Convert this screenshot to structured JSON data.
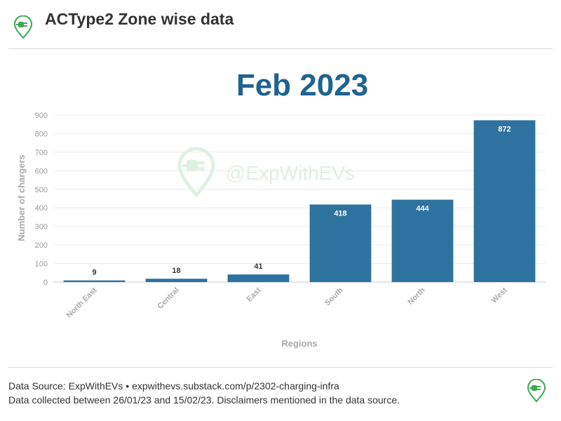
{
  "header": {
    "title": "ACType2 Zone wise data",
    "logo_icon": "ev-plug-pin-icon"
  },
  "watermark": {
    "text": "@ExpWithEVs",
    "icon": "ev-plug-pin-icon"
  },
  "chart_data": {
    "type": "bar",
    "title": "Feb 2023",
    "xlabel": "Regions",
    "ylabel": "Number of chargers",
    "categories": [
      "North East",
      "Central",
      "East",
      "South",
      "North",
      "West"
    ],
    "values": [
      9,
      18,
      41,
      418,
      444,
      872
    ],
    "data_labels": [
      "9",
      "18",
      "41",
      "418",
      "444",
      "872"
    ],
    "ylim": [
      0,
      900
    ],
    "yticks": [
      0,
      100,
      200,
      300,
      400,
      500,
      600,
      700,
      800,
      900
    ],
    "grid": true,
    "legend": "none",
    "bar_color": "#2e73a0",
    "title_color": "#1f6391"
  },
  "footer": {
    "source_line": "Data Source: ExpWithEVs • expwithevs.substack.com/p/2302-charging-infra",
    "disclaimer_line": "Data collected between 26/01/23 and 15/02/23. Disclaimers mentioned in the data source."
  },
  "colors": {
    "brand_green": "#3daa52",
    "watermark": "#dff0e3"
  }
}
